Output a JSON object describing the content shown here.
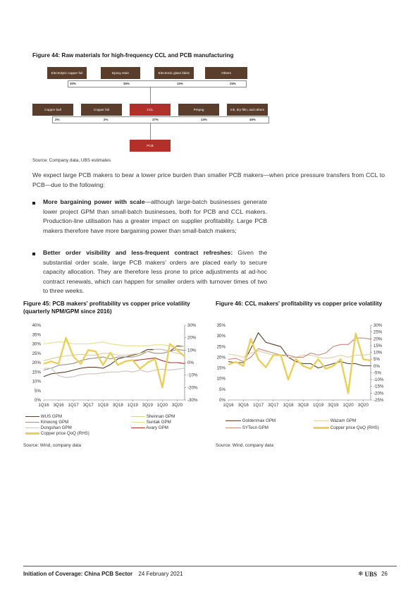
{
  "fig44": {
    "title": "Figure 44: Raw materials for high-frequency CCL and PCB manufacturing",
    "row1": [
      {
        "label": "Electrolytic copper foil",
        "pct": "30%"
      },
      {
        "label": "Epoxy resin",
        "pct": "35%"
      },
      {
        "label": "Electronic glass fabric",
        "pct": "10%"
      },
      {
        "label": "Others",
        "pct": "25%"
      }
    ],
    "row2": [
      {
        "label": "Copper ball",
        "pct": "2%"
      },
      {
        "label": "Copper foil",
        "pct": "2%"
      },
      {
        "label": "CCL",
        "pct": "37%"
      },
      {
        "label": "Prepeg",
        "pct": "13%"
      },
      {
        "label": "Ink, dry-film, and others",
        "pct": "46%"
      }
    ],
    "pcb": "PCB",
    "source": "Source:  Company data, UBS estimates"
  },
  "body": {
    "intro": "We expect large PCB makers to bear a lower price burden than smaller PCB makers—when price pressure transfers from CCL to PCB—due to the following:",
    "bullet1_bold": "More bargaining power with scale",
    "bullet1_rest": "—although large-batch businesses generate lower project GPM than small-batch businesses, both for PCB and CCL makers. Production-line utilisation has a greater impact on supplier profitability. Large PCB makers therefore have more bargaining power than small-batch makers;",
    "bullet2_bold": "Better order visibility and less-frequent contract refreshes:",
    "bullet2_rest": " Given the substantial order scale, large PCB makers' orders are placed early to secure capacity allocation. They are therefore less prone to price adjustments at ad-hoc contract renewals, which can happen for smaller orders with turnover times of two to three weeks."
  },
  "fig45": {
    "title": "Figure 45: PCB makers' profitability vs copper price volatility (quarterly NPM/GPM since 2016)",
    "source": "Source:  Wind, company data",
    "legend": [
      "WUS GPM",
      "Shennan GPM",
      "Kinwong GPM",
      "Suntak GPM",
      "Dongshan GPM",
      "Avary GPM",
      "Copper price QoQ (RHS)"
    ]
  },
  "fig46": {
    "title": "Figure 46: CCL makers' profitability vs copper price volatility",
    "source": "Source:  Wind, company data",
    "legend": [
      "Goldenmax GPM",
      "Wazam GPM",
      "SYTecn GPM",
      "Copper price QoQ (RHS)"
    ]
  },
  "footer": {
    "title": "Initiation of Coverage: China PCB Sector",
    "date": "24 February 2021",
    "brand": "UBS",
    "page": "26"
  },
  "colors": {
    "brown": "#5a3d2b",
    "red": "#b0302a",
    "copper": "#e9cf5c"
  },
  "chart_data": [
    {
      "type": "line",
      "categories": [
        "1Q16",
        "2Q16",
        "3Q16",
        "4Q16",
        "1Q17",
        "2Q17",
        "3Q17",
        "4Q17",
        "1Q18",
        "2Q18",
        "3Q18",
        "4Q18",
        "1Q19",
        "2Q19",
        "3Q19",
        "4Q19",
        "1Q20",
        "2Q20",
        "3Q20",
        "4Q20"
      ],
      "x_tick_labels": [
        "1Q16",
        "3Q16",
        "1Q17",
        "3Q17",
        "1Q18",
        "3Q18",
        "1Q19",
        "3Q19",
        "1Q20",
        "3Q20"
      ],
      "ylim": [
        0,
        40
      ],
      "y_ticks": [
        "0%",
        "5%",
        "10%",
        "15%",
        "20%",
        "25%",
        "30%",
        "35%",
        "40%"
      ],
      "y2lim": [
        -30,
        30
      ],
      "y2_ticks": [
        "-30%",
        "-20%",
        "-10%",
        "0%",
        "10%",
        "20%",
        "30%"
      ],
      "series": [
        {
          "name": "WUS GPM",
          "axis": "left",
          "color": "#5a3d2b",
          "values": [
            12.5,
            14,
            14.5,
            15,
            16,
            17,
            17.5,
            17.5,
            17,
            19,
            22,
            23,
            24,
            25,
            27,
            27,
            27,
            26,
            29,
            28.5
          ]
        },
        {
          "name": "Kinwong GPM",
          "axis": "left",
          "color": "#9a8f88",
          "values": [
            16,
            17,
            18.5,
            19,
            19.5,
            21,
            22,
            22.5,
            23,
            22,
            23,
            23,
            23,
            24,
            26,
            25,
            25,
            26,
            27,
            26.5
          ]
        },
        {
          "name": "Dongshan GPM",
          "axis": "left",
          "color": "#c9c3bd",
          "values": [
            17,
            17,
            13,
            12,
            12.5,
            13.5,
            14,
            14,
            14.5,
            15,
            15,
            15.5,
            15,
            16,
            15,
            16,
            16.5,
            16,
            16.5,
            17
          ]
        },
        {
          "name": "Shennan GPM",
          "axis": "left",
          "color": "#d9cfa0",
          "values": [
            21,
            22,
            23,
            23.5,
            24,
            24.5,
            24,
            24,
            25,
            25,
            24,
            24,
            24.5,
            25,
            26,
            27,
            27,
            26,
            25,
            24
          ]
        },
        {
          "name": "Suntak GPM",
          "axis": "left",
          "color": "#e8dc8a",
          "values": [
            30,
            30.5,
            31,
            31,
            30,
            30,
            30,
            30.5,
            31,
            30,
            29.5,
            29,
            29,
            29,
            29,
            29.5,
            29.5,
            29,
            28.5,
            28.5
          ]
        },
        {
          "name": "Avary GPM",
          "axis": "left",
          "color": "#b0302a",
          "values": [
            null,
            null,
            null,
            null,
            null,
            null,
            null,
            null,
            null,
            null,
            null,
            null,
            21,
            21.5,
            22,
            22.5,
            21,
            20,
            20,
            19.5
          ]
        },
        {
          "name": "Copper price QoQ (RHS)",
          "axis": "right",
          "color": "#e9cf5c",
          "values": [
            -1,
            1,
            -1,
            20,
            5,
            -1,
            10,
            9,
            -2,
            8,
            -2,
            1,
            2,
            -5,
            0,
            3,
            -20,
            15,
            10,
            5
          ]
        }
      ]
    },
    {
      "type": "line",
      "categories": [
        "1Q16",
        "2Q16",
        "3Q16",
        "4Q16",
        "1Q17",
        "2Q17",
        "3Q17",
        "4Q17",
        "1Q18",
        "2Q18",
        "3Q18",
        "4Q18",
        "1Q19",
        "2Q19",
        "3Q19",
        "4Q19",
        "1Q20",
        "2Q20",
        "3Q20",
        "4Q20"
      ],
      "x_tick_labels": [
        "1Q16",
        "3Q16",
        "1Q17",
        "3Q17",
        "1Q18",
        "3Q18",
        "1Q19",
        "3Q19",
        "1Q20",
        "3Q20"
      ],
      "ylim": [
        0,
        35
      ],
      "y_ticks": [
        "0%",
        "5%",
        "10%",
        "15%",
        "20%",
        "25%",
        "30%",
        "35%"
      ],
      "y2lim": [
        -25,
        30
      ],
      "y2_ticks": [
        "-25%",
        "-20%",
        "-15%",
        "-10%",
        "-5%",
        "0%",
        "5%",
        "10%",
        "15%",
        "20%",
        "25%",
        "30%"
      ],
      "series": [
        {
          "name": "Goldenmax GPM",
          "axis": "left",
          "color": "#5a3d2b",
          "values": [
            18,
            17.5,
            17.5,
            24,
            31.5,
            27,
            26,
            25,
            20,
            18,
            17,
            17,
            15,
            16,
            17,
            18,
            17,
            17,
            16,
            16
          ]
        },
        {
          "name": "Wazam GPM",
          "axis": "left",
          "color": "#e0cfa0",
          "values": [
            21.5,
            21,
            20,
            22,
            23,
            22,
            21,
            21,
            20,
            20,
            21,
            21,
            20,
            19.5,
            20,
            21,
            20,
            21,
            21,
            21.5
          ]
        },
        {
          "name": "SYTecn GPM",
          "axis": "left",
          "color": "#c48a7d",
          "values": [
            19,
            19.5,
            18,
            20,
            24,
            23,
            22,
            21,
            21,
            20,
            20,
            22,
            21,
            22,
            25,
            26,
            26,
            29,
            29,
            28.5
          ]
        },
        {
          "name": "Copper price QoQ (RHS)",
          "axis": "right",
          "color": "#e9cf5c",
          "values": [
            1,
            3,
            0,
            20,
            5,
            -1,
            8,
            8,
            -10,
            5,
            0,
            -2,
            5,
            -2,
            0,
            5,
            -20,
            24,
            5,
            4
          ]
        }
      ]
    }
  ]
}
